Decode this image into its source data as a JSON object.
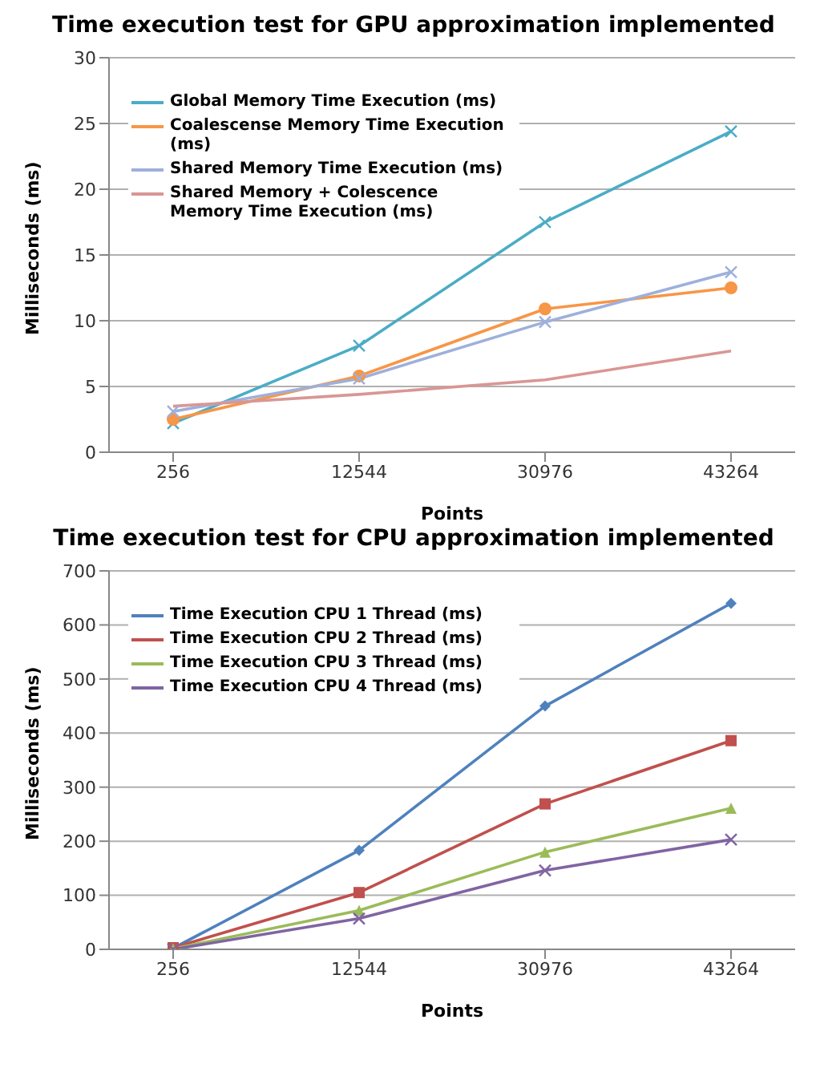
{
  "chart_data": [
    {
      "type": "line",
      "title": "Time execution test for GPU approximation implemented",
      "xlabel": "Points",
      "ylabel": "Milliseconds (ms)",
      "categories": [
        "256",
        "12544",
        "30976",
        "43264"
      ],
      "ylim": [
        0,
        30
      ],
      "yticks": [
        0,
        5,
        10,
        15,
        20,
        25,
        30
      ],
      "grid": "y",
      "legend": "top left",
      "series": [
        {
          "name": "Global Memory Time Execution (ms)",
          "color": "#4bacc6",
          "marker": "cross",
          "values": [
            2.2,
            8.1,
            17.5,
            24.4
          ]
        },
        {
          "name": "Coalescense Memory Time Execution (ms)",
          "color": "#f79646",
          "marker": "circle",
          "values": [
            2.5,
            5.8,
            10.9,
            12.5
          ]
        },
        {
          "name": "Shared Memory Time Execution (ms)",
          "color": "#9eb0db",
          "marker": "cross",
          "values": [
            3.1,
            5.6,
            9.9,
            13.7
          ]
        },
        {
          "name": "Shared Memory + Colescence Memory Time Execution (ms)",
          "color": "#d99694",
          "marker": "none",
          "values": [
            3.5,
            4.4,
            5.5,
            7.7
          ]
        }
      ]
    },
    {
      "type": "line",
      "title": "Time execution test for CPU approximation implemented",
      "xlabel": "Points",
      "ylabel": "Milliseconds (ms)",
      "categories": [
        "256",
        "12544",
        "30976",
        "43264"
      ],
      "ylim": [
        0,
        700
      ],
      "yticks": [
        0,
        100,
        200,
        300,
        400,
        500,
        600,
        700
      ],
      "grid": "y",
      "legend": "top left",
      "series": [
        {
          "name": "Time Execution CPU 1 Thread (ms)",
          "color": "#4f81bd",
          "marker": "diamond",
          "values": [
            2,
            183,
            450,
            640
          ]
        },
        {
          "name": "Time Execution CPU 2 Thread (ms)",
          "color": "#c0504d",
          "marker": "square",
          "values": [
            3,
            105,
            269,
            386
          ]
        },
        {
          "name": "Time Execution CPU 3 Thread (ms)",
          "color": "#9bbb59",
          "marker": "triangle",
          "values": [
            1,
            72,
            180,
            261
          ]
        },
        {
          "name": "Time Execution CPU 4 Thread (ms)",
          "color": "#8064a2",
          "marker": "cross",
          "values": [
            0,
            57,
            146,
            203
          ]
        }
      ]
    }
  ]
}
